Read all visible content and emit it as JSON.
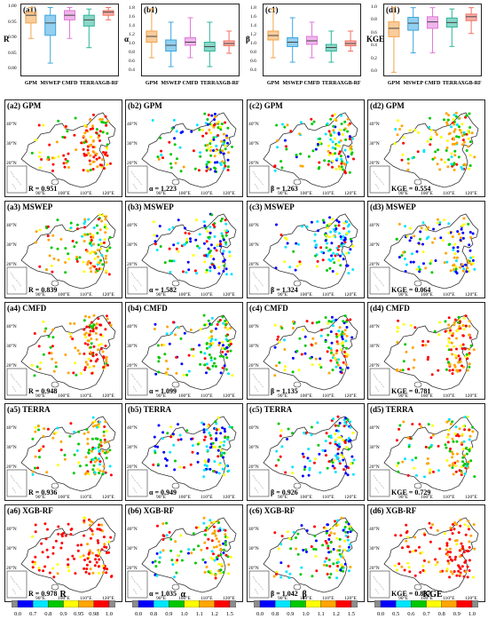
{
  "boxplots": [
    {
      "id": "a1",
      "label": "(a1)",
      "ylabel": "R",
      "yticks": [
        "1.00",
        "0.95",
        "0.90",
        "0.85",
        "0.80"
      ],
      "ylim": [
        0.78,
        1.01
      ],
      "boxes": [
        {
          "product": "GPM",
          "color": "#F3A34A",
          "min": 0.9,
          "q1": 0.95,
          "med": 0.975,
          "q3": 0.985,
          "max": 1.0
        },
        {
          "product": "MSWEP",
          "color": "#3BA7E0",
          "min": 0.82,
          "q1": 0.91,
          "med": 0.95,
          "q3": 0.975,
          "max": 1.0
        },
        {
          "product": "CMFD",
          "color": "#E07AD8",
          "min": 0.9,
          "q1": 0.96,
          "med": 0.975,
          "q3": 0.99,
          "max": 1.0
        },
        {
          "product": "TERRA",
          "color": "#2BB59A",
          "min": 0.87,
          "q1": 0.94,
          "med": 0.96,
          "q3": 0.975,
          "max": 0.995
        },
        {
          "product": "XGB-RF",
          "color": "#F07060",
          "min": 0.96,
          "q1": 0.975,
          "med": 0.985,
          "q3": 0.99,
          "max": 1.0
        }
      ]
    },
    {
      "id": "b1",
      "label": "(b1)",
      "ylabel": "α",
      "yticks": [
        "1.8",
        "1.6",
        "1.4",
        "1.2",
        "1.0",
        "0.8",
        "0.6",
        "0.4"
      ],
      "ylim": [
        0.3,
        1.9
      ],
      "boxes": [
        {
          "product": "GPM",
          "color": "#F3A34A",
          "min": 0.7,
          "q1": 1.05,
          "med": 1.18,
          "q3": 1.3,
          "max": 1.8
        },
        {
          "product": "MSWEP",
          "color": "#3BA7E0",
          "min": 0.5,
          "q1": 0.85,
          "med": 0.98,
          "q3": 1.1,
          "max": 1.5
        },
        {
          "product": "CMFD",
          "color": "#E07AD8",
          "min": 0.7,
          "q1": 0.98,
          "med": 1.05,
          "q3": 1.15,
          "max": 1.6
        },
        {
          "product": "TERRA",
          "color": "#2BB59A",
          "min": 0.5,
          "q1": 0.85,
          "med": 0.95,
          "q3": 1.05,
          "max": 1.5
        },
        {
          "product": "XGB-RF",
          "color": "#F07060",
          "min": 0.8,
          "q1": 0.97,
          "med": 1.02,
          "q3": 1.08,
          "max": 1.3
        }
      ]
    },
    {
      "id": "c1",
      "label": "(c1)",
      "ylabel": "β",
      "yticks": [
        "1.8",
        "1.6",
        "1.4",
        "1.2",
        "1.0",
        "0.8",
        "0.6",
        "0.4"
      ],
      "ylim": [
        0.3,
        1.9
      ],
      "boxes": [
        {
          "product": "GPM",
          "color": "#F3A34A",
          "min": 0.7,
          "q1": 1.1,
          "med": 1.2,
          "q3": 1.3,
          "max": 1.8
        },
        {
          "product": "MSWEP",
          "color": "#3BA7E0",
          "min": 0.6,
          "q1": 0.95,
          "med": 1.05,
          "q3": 1.15,
          "max": 1.6
        },
        {
          "product": "CMFD",
          "color": "#E07AD8",
          "min": 0.7,
          "q1": 1.0,
          "med": 1.08,
          "q3": 1.18,
          "max": 1.5
        },
        {
          "product": "TERRA",
          "color": "#2BB59A",
          "min": 0.6,
          "q1": 0.85,
          "med": 0.93,
          "q3": 1.0,
          "max": 1.3
        },
        {
          "product": "XGB-RF",
          "color": "#F07060",
          "min": 0.85,
          "q1": 0.97,
          "med": 1.02,
          "q3": 1.08,
          "max": 1.3
        }
      ]
    },
    {
      "id": "d1",
      "label": "(d1)",
      "ylabel": "KGE",
      "yticks": [
        "1.0",
        "0.8",
        "0.6",
        "0.4",
        "0.2",
        "0.0"
      ],
      "ylim": [
        -0.05,
        1.05
      ],
      "boxes": [
        {
          "product": "GPM",
          "color": "#F3A34A",
          "min": 0.0,
          "q1": 0.55,
          "med": 0.68,
          "q3": 0.78,
          "max": 1.0
        },
        {
          "product": "MSWEP",
          "color": "#3BA7E0",
          "min": 0.3,
          "q1": 0.65,
          "med": 0.76,
          "q3": 0.85,
          "max": 1.0
        },
        {
          "product": "CMFD",
          "color": "#E07AD8",
          "min": 0.3,
          "q1": 0.68,
          "med": 0.78,
          "q3": 0.86,
          "max": 1.0
        },
        {
          "product": "TERRA",
          "color": "#2BB59A",
          "min": 0.4,
          "q1": 0.7,
          "med": 0.77,
          "q3": 0.84,
          "max": 0.98
        },
        {
          "product": "XGB-RF",
          "color": "#F07060",
          "min": 0.6,
          "q1": 0.8,
          "med": 0.86,
          "q3": 0.9,
          "max": 1.0
        }
      ]
    }
  ],
  "map_rows": [
    {
      "row": 2,
      "product": "GPM",
      "panels": [
        {
          "label": "(a2) GPM",
          "metric": "R = 0.951",
          "col": 0,
          "bias": "high"
        },
        {
          "label": "(b2) GPM",
          "metric": "α = 1.223",
          "col": 1,
          "bias": "mixed"
        },
        {
          "label": "(c2) GPM",
          "metric": "β = 1.263",
          "col": 2,
          "bias": "mixed"
        },
        {
          "label": "(d2) GPM",
          "metric": "KGE = 0.554",
          "col": 3,
          "bias": "mid"
        }
      ]
    },
    {
      "row": 3,
      "product": "MSWEP",
      "panels": [
        {
          "label": "(a3) MSWEP",
          "metric": "R = 0.839",
          "col": 0,
          "bias": "mid"
        },
        {
          "label": "(b3) MSWEP",
          "metric": "α = 1.582",
          "col": 1,
          "bias": "low"
        },
        {
          "label": "(c3) MSWEP",
          "metric": "β = 1.324",
          "col": 2,
          "bias": "low"
        },
        {
          "label": "(d3) MSWEP",
          "metric": "KGE = 0.064",
          "col": 3,
          "bias": "lowmid"
        }
      ]
    },
    {
      "row": 4,
      "product": "CMFD",
      "panels": [
        {
          "label": "(a4) CMFD",
          "metric": "R = 0.948",
          "col": 0,
          "bias": "high"
        },
        {
          "label": "(b4) CMFD",
          "metric": "α = 1.099",
          "col": 1,
          "bias": "mixed"
        },
        {
          "label": "(c4) CMFD",
          "metric": "β = 1.135",
          "col": 2,
          "bias": "mixed"
        },
        {
          "label": "(d4) CMFD",
          "metric": "KGE = 0.781",
          "col": 3,
          "bias": "high"
        }
      ]
    },
    {
      "row": 5,
      "product": "TERRA",
      "panels": [
        {
          "label": "(a5) TERRA",
          "metric": "R = 0.936",
          "col": 0,
          "bias": "mid"
        },
        {
          "label": "(b5) TERRA",
          "metric": "α = 0.949",
          "col": 1,
          "bias": "low"
        },
        {
          "label": "(c5) TERRA",
          "metric": "β = 0.926",
          "col": 2,
          "bias": "low"
        },
        {
          "label": "(d5) TERRA",
          "metric": "KGE = 0.729",
          "col": 3,
          "bias": "mid"
        }
      ]
    },
    {
      "row": 6,
      "product": "XGB-RF",
      "panels": [
        {
          "label": "(a6) XGB-RF",
          "metric": "R = 0.978",
          "col": 0,
          "bias": "vhigh"
        },
        {
          "label": "(b6) XGB-RF",
          "metric": "α = 1.035",
          "col": 1,
          "bias": "mixed"
        },
        {
          "label": "(c6) XGB-RF",
          "metric": "β = 1.042",
          "col": 2,
          "bias": "mixed"
        },
        {
          "label": "(d6) XGB-RF",
          "metric": "KGE = 0.837",
          "col": 3,
          "bias": "vhigh"
        }
      ]
    }
  ],
  "map_axes": {
    "lon_ticks": [
      "90°E",
      "100°E",
      "110°E",
      "120°E"
    ],
    "lat_ticks": [
      "40°N",
      "30°N",
      "20°N"
    ]
  },
  "colorbars": [
    {
      "title": "R",
      "ticks": [
        "0.0",
        "0.7",
        "0.8",
        "0.9",
        "0.95",
        "0.98",
        "1.0"
      ],
      "colors": [
        "#8c8c8c",
        "#0000ff",
        "#00e5ff",
        "#00c800",
        "#ffff00",
        "#ffa500",
        "#ff0000",
        "#8c8c8c"
      ]
    },
    {
      "title": "α",
      "ticks": [
        "0.0",
        "0.8",
        "0.9",
        "1.0",
        "1.1",
        "1.2",
        "1.5"
      ],
      "colors": [
        "#8c8c8c",
        "#0000ff",
        "#00e5ff",
        "#00c800",
        "#ffff00",
        "#ffa500",
        "#ff0000",
        "#8c8c8c"
      ]
    },
    {
      "title": "β",
      "ticks": [
        "0.0",
        "0.8",
        "0.9",
        "1.0",
        "1.1",
        "1.2",
        "1.5"
      ],
      "colors": [
        "#8c8c8c",
        "#0000ff",
        "#00e5ff",
        "#00c800",
        "#ffff00",
        "#ffa500",
        "#ff0000",
        "#8c8c8c"
      ]
    },
    {
      "title": "KGE",
      "ticks": [
        "0.0",
        "0.5",
        "0.6",
        "0.7",
        "0.8",
        "0.9",
        "1.0"
      ],
      "colors": [
        "#8c8c8c",
        "#0000ff",
        "#00e5ff",
        "#00c800",
        "#ffff00",
        "#ffa500",
        "#ff0000",
        "#8c8c8c"
      ]
    }
  ]
}
